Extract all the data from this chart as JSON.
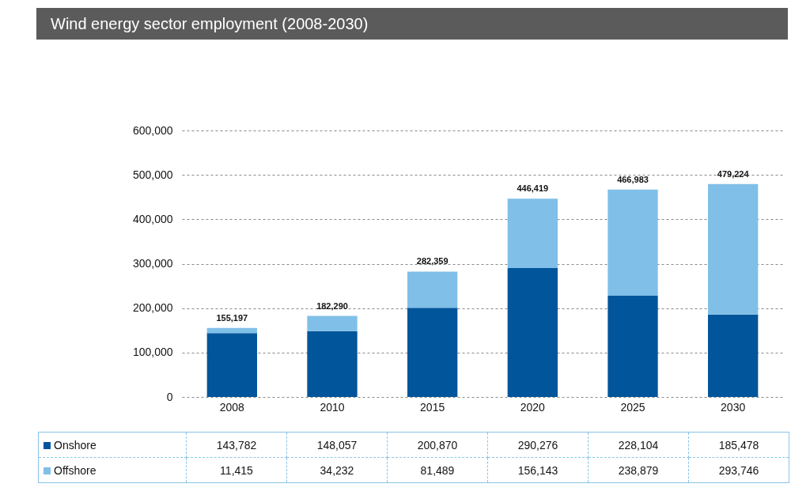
{
  "chart_data": {
    "type": "bar",
    "title": "Wind energy sector employment (2008-2030)",
    "categories": [
      "2008",
      "2010",
      "2015",
      "2020",
      "2025",
      "2030"
    ],
    "stacked": true,
    "series": [
      {
        "name": "Onshore",
        "color": "#00559b",
        "values": [
          143782,
          148057,
          200870,
          290276,
          228104,
          185478
        ],
        "value_labels": [
          "143,782",
          "148,057",
          "200,870",
          "290,276",
          "228,104",
          "185,478"
        ]
      },
      {
        "name": "Offshore",
        "color": "#80bfe7",
        "values": [
          11415,
          34232,
          81489,
          156143,
          238879,
          293746
        ],
        "value_labels": [
          "11,415",
          "34,232",
          "81,489",
          "156,143",
          "238,879",
          "293,746"
        ]
      }
    ],
    "totals": [
      "155,197",
      "182,290",
      "282,359",
      "446,419",
      "466,983",
      "479,224"
    ],
    "ylim": [
      0,
      600000
    ],
    "yticks": [
      {
        "value": 0,
        "label": "0"
      },
      {
        "value": 100000,
        "label": "100,000"
      },
      {
        "value": 200000,
        "label": "200,000"
      },
      {
        "value": 300000,
        "label": "300,000"
      },
      {
        "value": 400000,
        "label": "400,000"
      },
      {
        "value": 500000,
        "label": "500,000"
      },
      {
        "value": 600000,
        "label": "600,000"
      }
    ],
    "grid": "y",
    "legend": "bottom"
  }
}
